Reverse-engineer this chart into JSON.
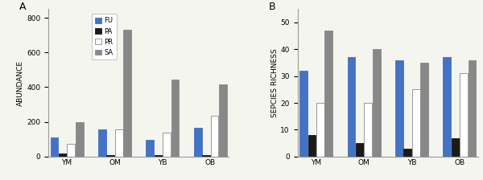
{
  "categories": [
    "YM",
    "OM",
    "YB",
    "OB"
  ],
  "abundance": {
    "FU": [
      110,
      155,
      95,
      165
    ],
    "PA": [
      20,
      10,
      10,
      10
    ],
    "PR": [
      75,
      155,
      140,
      235
    ],
    "SA": [
      200,
      730,
      445,
      415
    ]
  },
  "richness": {
    "FU": [
      32,
      37,
      36,
      37
    ],
    "PA": [
      8,
      5,
      3,
      7
    ],
    "PR": [
      20,
      20,
      25,
      31
    ],
    "SA": [
      47,
      40,
      35,
      36
    ]
  },
  "colors": {
    "FU": "#4472C4",
    "PA": "#1a1a1a",
    "PR": "#FFFFFF",
    "SA": "#888888"
  },
  "edgecolors": {
    "FU": "#4472C4",
    "PA": "#1a1a1a",
    "PR": "#888888",
    "SA": "#888888"
  },
  "ylim_abundance": [
    0,
    850
  ],
  "yticks_abundance": [
    0,
    200,
    400,
    600,
    800
  ],
  "ylim_richness": [
    0,
    55
  ],
  "yticks_richness": [
    0,
    10,
    20,
    30,
    40,
    50
  ],
  "ylabel_a": "ABUNDANCE",
  "ylabel_b": "SEPCIES RICHNESS",
  "label_a": "A",
  "label_b": "B",
  "legend_labels": [
    "FU",
    "PA",
    "PR",
    "SA"
  ],
  "bar_width": 0.12,
  "group_positions": [
    0.0,
    0.72,
    1.44,
    2.16
  ],
  "bg_color": "#f5f5f0"
}
